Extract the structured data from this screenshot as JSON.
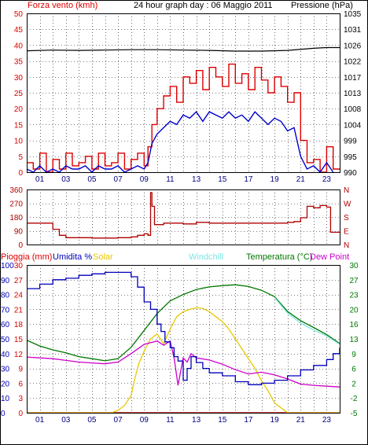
{
  "title": "24 hour graph day : 06 Maggio 2011",
  "colors": {
    "wind": "#dd0000",
    "gust": "#0000cc",
    "pressure": "#000000",
    "direction": "#b00000",
    "humidity": "#0000bb",
    "solar": "#e8c800",
    "windchill": "#7fe5e5",
    "temperature": "#007700",
    "dewpoint": "#cc00cc",
    "rain": "#cc0000",
    "grid": "#000000",
    "frame": "#000000"
  },
  "x_ticks": [
    "01",
    "03",
    "05",
    "07",
    "09",
    "11",
    "13",
    "15",
    "17",
    "19",
    "21",
    "23"
  ],
  "chart_data": [
    {
      "type": "line",
      "name": "wind",
      "title": "24 hour graph day : 06 Maggio 2011",
      "left_label": "Forza vento (kmh)",
      "right_label": "Pressione (hPa)",
      "x_range": [
        0,
        24
      ],
      "left_ticks": [
        "0",
        "5",
        "10",
        "15",
        "20",
        "25",
        "30",
        "35",
        "40",
        "45",
        "50"
      ],
      "left_range": [
        0,
        50
      ],
      "right_ticks": [
        "990",
        "995",
        "999",
        "1004",
        "1008",
        "1013",
        "1017",
        "1022",
        "1026",
        "1031",
        "1035"
      ],
      "right_range": [
        990,
        1035
      ],
      "grid": true,
      "series": [
        {
          "name": "Forza vento (kmh)",
          "axis": "left",
          "color_key": "wind",
          "step": true,
          "x": [
            0,
            0.5,
            1,
            1.5,
            2,
            2.5,
            3,
            3.5,
            4,
            4.5,
            5,
            5.5,
            6,
            6.5,
            7,
            7.5,
            8,
            8.5,
            9,
            9.3,
            9.6,
            10,
            10.5,
            11,
            11.5,
            12,
            12.5,
            13,
            13.5,
            14,
            14.5,
            15,
            15.5,
            16,
            16.5,
            17,
            17.5,
            18,
            18.5,
            19,
            19.5,
            20,
            20.5,
            21,
            21.5,
            22,
            22.5,
            23,
            23.5
          ],
          "y": [
            3,
            1,
            6,
            0,
            4,
            1,
            6,
            2,
            3,
            5,
            1,
            6,
            2,
            3,
            6,
            1,
            4,
            6,
            2,
            8,
            15,
            20,
            24,
            27,
            22,
            30,
            28,
            32,
            26,
            33,
            30,
            27,
            34,
            28,
            31,
            26,
            33,
            29,
            25,
            30,
            27,
            22,
            25,
            10,
            3,
            4,
            0,
            8,
            1
          ]
        },
        {
          "name": "Raffica vento",
          "axis": "left",
          "color_key": "gust",
          "x": [
            0,
            0.5,
            1,
            1.5,
            2,
            2.5,
            3,
            3.5,
            4,
            4.5,
            5,
            5.5,
            6,
            6.5,
            7,
            7.5,
            8,
            8.5,
            9,
            9.3,
            9.6,
            10,
            10.5,
            11,
            11.5,
            12,
            12.5,
            13,
            13.5,
            14,
            14.5,
            15,
            15.5,
            16,
            16.5,
            17,
            17.5,
            18,
            18.5,
            19,
            19.5,
            20,
            20.5,
            21,
            21.5,
            22,
            22.5,
            23,
            23.5
          ],
          "y": [
            1,
            0,
            2,
            0,
            1,
            0,
            2,
            1,
            1,
            2,
            0,
            2,
            1,
            1,
            2,
            0,
            1,
            2,
            1,
            3,
            9,
            12,
            14,
            16,
            15,
            18,
            17,
            19,
            16,
            19,
            18,
            17,
            19,
            17,
            18,
            16,
            19,
            17,
            15,
            17,
            16,
            13,
            14,
            5,
            1,
            2,
            0,
            3,
            0
          ]
        },
        {
          "name": "Pressione (hPa)",
          "axis": "right",
          "color_key": "pressure",
          "x": [
            0,
            2,
            4,
            6,
            8,
            10,
            12,
            14,
            16,
            18,
            20,
            22,
            23,
            24
          ],
          "y": [
            1024.4,
            1024.6,
            1024.5,
            1024.6,
            1024.7,
            1024.7,
            1024.6,
            1024.5,
            1024.3,
            1024.3,
            1024.5,
            1025.1,
            1025.3,
            1025.3
          ]
        }
      ]
    },
    {
      "type": "line",
      "name": "direction",
      "left_ticks": [
        "0",
        "90",
        "180",
        "270",
        "360"
      ],
      "left_range": [
        0,
        360
      ],
      "right_ticks": [
        "N",
        "E",
        "S",
        "W",
        "N"
      ],
      "x_range": [
        0,
        24
      ],
      "grid": true,
      "series": [
        {
          "name": "Direzione vento",
          "color_key": "direction",
          "step": true,
          "x": [
            0,
            1.5,
            2,
            2.5,
            3,
            5,
            7,
            8,
            8.5,
            9,
            9.3,
            9.5,
            9.6,
            9.8,
            10.5,
            12,
            13,
            14,
            16,
            18,
            19,
            20,
            20.5,
            21,
            21.5,
            22,
            22.5,
            23,
            23.3,
            23.5
          ],
          "y": [
            140,
            140,
            100,
            60,
            45,
            42,
            45,
            50,
            60,
            70,
            60,
            340,
            250,
            130,
            140,
            135,
            145,
            140,
            140,
            140,
            140,
            145,
            150,
            175,
            250,
            240,
            255,
            245,
            80,
            80
          ]
        }
      ]
    },
    {
      "type": "line",
      "name": "weather",
      "labels": {
        "rain": "Pioggia (mm)",
        "humidity": "Umidita %",
        "solar": "Solar",
        "windchill": "Windchill",
        "temperature": "Temperatura (°C)",
        "dewpoint": "Dew Point"
      },
      "x_range": [
        0,
        24
      ],
      "left_outer_ticks": [
        "0",
        "10",
        "20",
        "30",
        "40",
        "50",
        "60",
        "70",
        "80",
        "90",
        "100"
      ],
      "left_outer_range": [
        0,
        100
      ],
      "left_inner_ticks": [
        "0",
        "3",
        "6",
        "9",
        "12",
        "15",
        "18",
        "21",
        "24",
        "27",
        "30"
      ],
      "left_inner_range": [
        0,
        30
      ],
      "right_ticks": [
        "-5",
        "-2",
        "2",
        "6",
        "9",
        "13",
        "16",
        "20",
        "23",
        "27",
        "30"
      ],
      "right_range": [
        -5,
        30
      ],
      "grid": true,
      "series": [
        {
          "name": "Umidita %",
          "axis": "left_outer",
          "color_key": "humidity",
          "step": true,
          "x": [
            0,
            1,
            2,
            3,
            4,
            5,
            6,
            7,
            7.5,
            8,
            8.5,
            9,
            9.5,
            10,
            10.3,
            10.6,
            11,
            11.3,
            11.6,
            12,
            12.3,
            12.6,
            13,
            13.5,
            14,
            15,
            16,
            17,
            18,
            19,
            20,
            21,
            22,
            23,
            23.5,
            24
          ],
          "y": [
            84,
            87,
            90,
            91,
            93,
            94,
            95,
            95,
            95,
            92,
            85,
            75,
            70,
            60,
            55,
            48,
            44,
            38,
            35,
            22,
            30,
            38,
            34,
            30,
            27,
            25,
            21,
            19,
            20,
            22,
            25,
            29,
            32,
            36,
            40,
            44
          ]
        },
        {
          "name": "Temperatura (°C)",
          "axis": "right",
          "color_key": "temperature",
          "x": [
            0,
            1,
            2,
            3,
            4,
            5,
            6,
            7,
            8,
            9,
            10,
            11,
            12,
            13,
            14,
            15,
            16,
            17,
            18,
            19,
            20,
            21,
            22,
            23,
            24
          ],
          "y": [
            12.2,
            10.8,
            9.9,
            9.2,
            8.3,
            7.8,
            7.3,
            7.8,
            10.5,
            14.5,
            18.5,
            21.5,
            23.0,
            24.2,
            24.8,
            25.1,
            25.3,
            24.9,
            24.0,
            22.5,
            19.0,
            16.8,
            15.2,
            13.5,
            11.4
          ]
        },
        {
          "name": "Windchill",
          "axis": "right",
          "color_key": "windchill",
          "x": [
            19,
            20,
            21,
            22,
            23,
            24
          ],
          "y": [
            22.3,
            18.6,
            16.2,
            14.6,
            13.2,
            11.2
          ]
        },
        {
          "name": "Dew Point",
          "axis": "right",
          "color_key": "dewpoint",
          "x": [
            0,
            1,
            2,
            3,
            4,
            5,
            6,
            7,
            8,
            9,
            10,
            10.5,
            11,
            11.3,
            11.6,
            12,
            12.3,
            12.6,
            13,
            14,
            15,
            16,
            17,
            18,
            19,
            20,
            21,
            22,
            23,
            24
          ],
          "y": [
            8.2,
            8.0,
            7.8,
            7.4,
            7.0,
            6.8,
            6.6,
            7.0,
            9.0,
            11.2,
            12.0,
            11.0,
            12.0,
            8.0,
            1.5,
            8.0,
            7.0,
            9.0,
            8.0,
            7.5,
            6.5,
            5.2,
            4.2,
            4.6,
            4.0,
            3.0,
            1.8,
            1.5,
            1.3,
            1.1
          ]
        },
        {
          "name": "Solar",
          "axis": "left_inner",
          "color_key": "solar",
          "x": [
            0,
            6.5,
            7,
            7.5,
            8,
            8.3,
            8.6,
            9,
            9.5,
            10,
            10.5,
            11,
            11.5,
            12,
            12.5,
            13,
            13.5,
            14,
            14.5,
            15,
            15.5,
            16,
            16.5,
            17,
            17.5,
            18,
            18.5,
            19,
            19.5,
            20,
            24
          ],
          "y": [
            0,
            0,
            0.5,
            1.5,
            3.5,
            7,
            10,
            12.5,
            15,
            16,
            14,
            17,
            19.5,
            20.5,
            21,
            21.3,
            21.2,
            20.5,
            19.5,
            18.5,
            17,
            15,
            13,
            11,
            9,
            6.5,
            4.5,
            2,
            1,
            0,
            0
          ]
        },
        {
          "name": "Pioggia (mm)",
          "axis": "left_outer",
          "color_key": "rain",
          "x": [
            0,
            24
          ],
          "y": [
            0,
            0
          ]
        }
      ]
    }
  ]
}
